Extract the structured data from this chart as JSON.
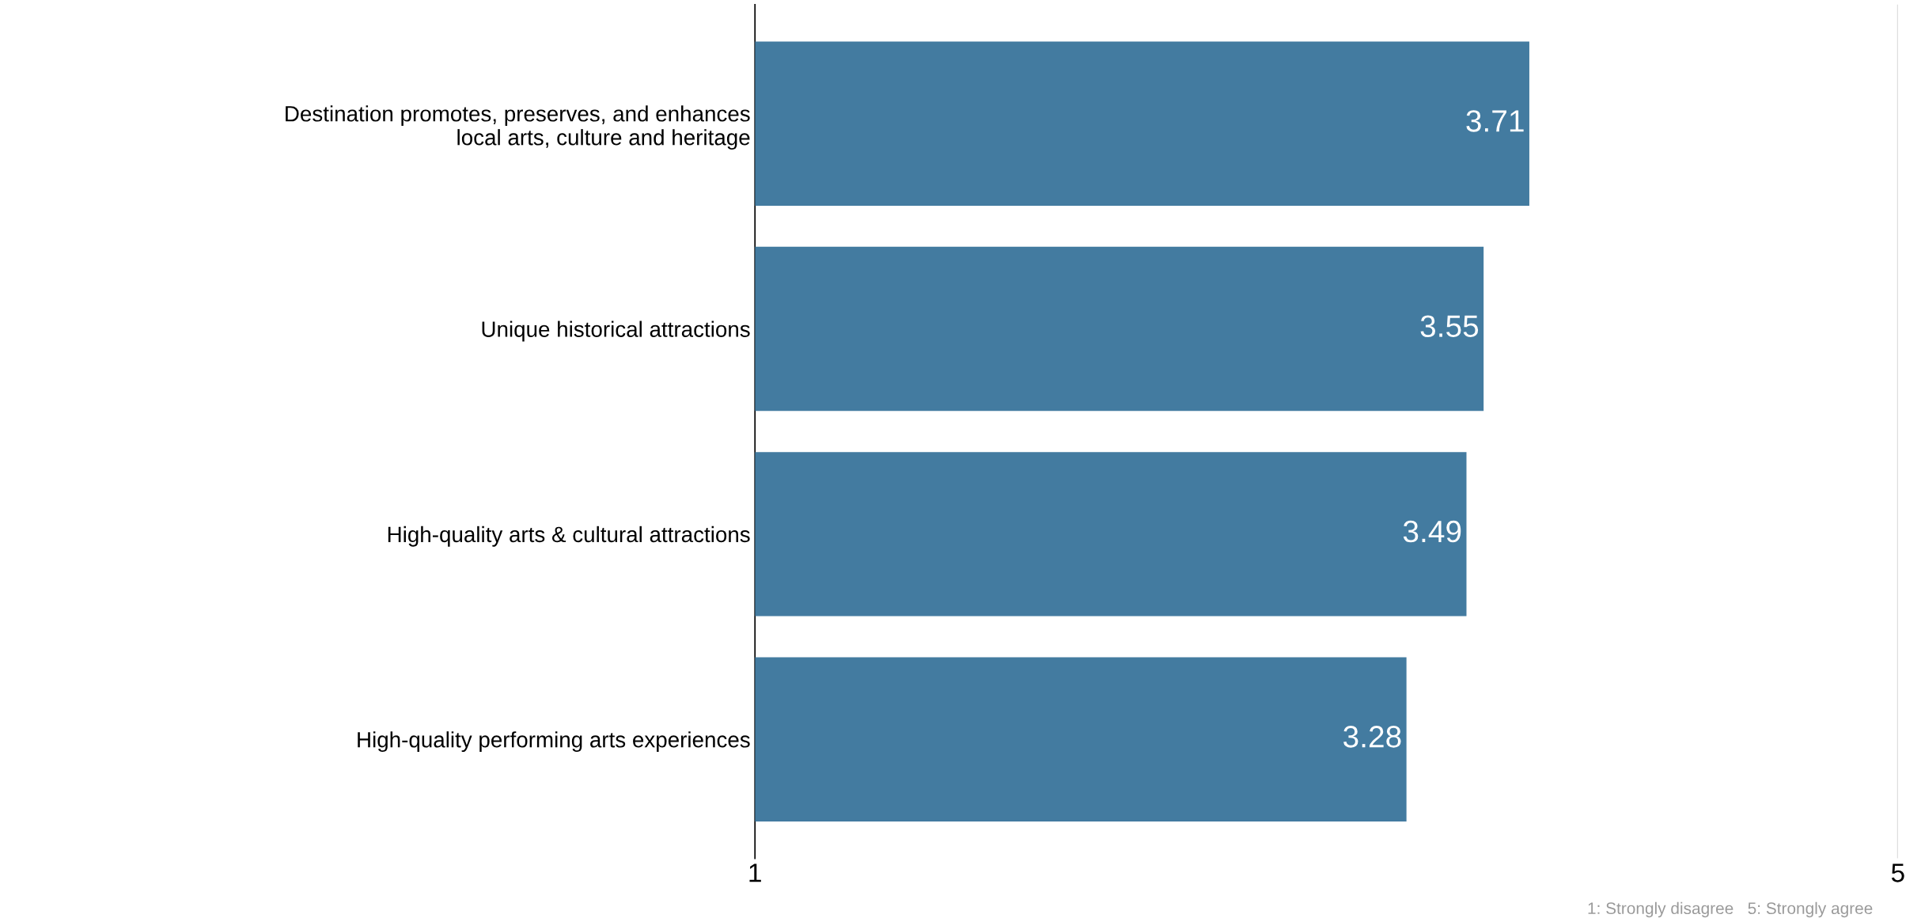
{
  "chart_data": {
    "type": "bar",
    "orientation": "horizontal",
    "categories": [
      "Destination promotes, preserves, and enhances\nlocal arts, culture and heritage",
      "Unique historical attractions",
      "High-quality arts & cultural attractions",
      "High-quality performing arts experiences"
    ],
    "values": [
      3.71,
      3.55,
      3.49,
      3.28
    ],
    "color": "#437ba0",
    "xlim": [
      1,
      5
    ],
    "xticks": [
      1,
      5
    ],
    "grid": "x",
    "data_labels": true,
    "annotations": [
      "1: Strongly disagree   5: Strongly agree"
    ]
  }
}
